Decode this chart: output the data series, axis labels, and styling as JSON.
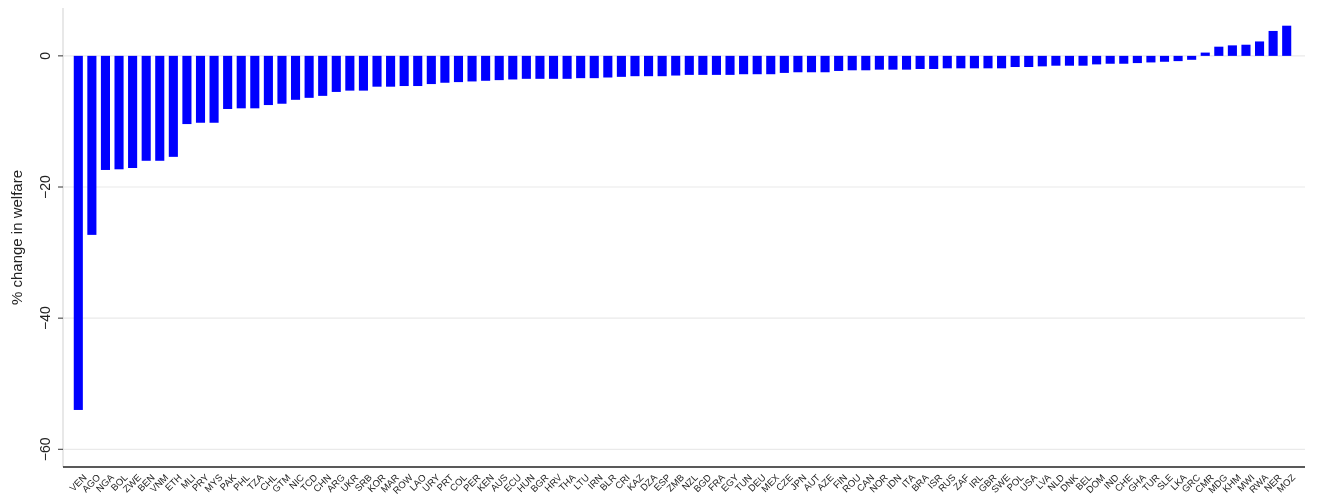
{
  "chart_data": {
    "type": "bar",
    "ylabel": "% change in welfare",
    "color": "#0000ff",
    "categories": [
      "VEN",
      "AGO",
      "NGA",
      "BOL",
      "ZWE",
      "BEN",
      "VNM",
      "ETH",
      "MLI",
      "PRY",
      "MYS",
      "PAK",
      "PHL",
      "TZA",
      "CHL",
      "GTM",
      "NIC",
      "TCD",
      "CHN",
      "ARG",
      "UKR",
      "SRB",
      "KOR",
      "MAR",
      "ROW",
      "LAO",
      "URY",
      "PRT",
      "COL",
      "PER",
      "KEN",
      "AUS",
      "ECU",
      "HUN",
      "BGR",
      "HRV",
      "THA",
      "LTU",
      "IRN",
      "BLR",
      "CRI",
      "KAZ",
      "DZA",
      "ESP",
      "ZMB",
      "NZL",
      "BGD",
      "FRA",
      "EGY",
      "TUN",
      "DEU",
      "MEX",
      "CZE",
      "JPN",
      "AUT",
      "AZE",
      "FIN",
      "ROU",
      "CAN",
      "NOR",
      "IDN",
      "ITA",
      "BRA",
      "ISR",
      "RUS",
      "ZAF",
      "IRL",
      "GBR",
      "SWE",
      "POL",
      "USA",
      "LVA",
      "NLD",
      "DNK",
      "BEL",
      "DOM",
      "IND",
      "CHE",
      "GHA",
      "TUR",
      "SLE",
      "LKA",
      "GRC",
      "CMR",
      "MDG",
      "KHM",
      "MWI",
      "RWA",
      "NER",
      "MOZ"
    ],
    "values": [
      -54,
      -27.3,
      -17.4,
      -17.3,
      -17.1,
      -16,
      -16,
      -15.4,
      -10.4,
      -10.2,
      -10.2,
      -8.1,
      -8,
      -8,
      -7.5,
      -7.3,
      -6.7,
      -6.4,
      -6.1,
      -5.5,
      -5.3,
      -5.3,
      -4.7,
      -4.7,
      -4.6,
      -4.6,
      -4.3,
      -4.1,
      -4,
      -3.9,
      -3.8,
      -3.7,
      -3.6,
      -3.5,
      -3.5,
      -3.5,
      -3.5,
      -3.4,
      -3.4,
      -3.3,
      -3.2,
      -3.1,
      -3.1,
      -3.1,
      -3,
      -2.9,
      -2.9,
      -2.9,
      -2.9,
      -2.8,
      -2.8,
      -2.8,
      -2.6,
      -2.5,
      -2.5,
      -2.5,
      -2.3,
      -2.2,
      -2.2,
      -2.1,
      -2.1,
      -2.1,
      -2,
      -2,
      -1.9,
      -1.9,
      -1.9,
      -1.9,
      -1.9,
      -1.7,
      -1.7,
      -1.6,
      -1.5,
      -1.5,
      -1.5,
      -1.3,
      -1.2,
      -1.2,
      -1.1,
      -1,
      -0.9,
      -0.8,
      -0.6,
      0.5,
      1.4,
      1.6,
      1.7,
      2.2,
      3.8,
      4.6
    ],
    "ylim": [
      -62.7,
      7.3
    ],
    "yticks": [
      {
        "value": -60,
        "label": "−60"
      },
      {
        "value": -40,
        "label": "−40"
      },
      {
        "value": -20,
        "label": "−20"
      },
      0
    ],
    "grid": "y"
  }
}
